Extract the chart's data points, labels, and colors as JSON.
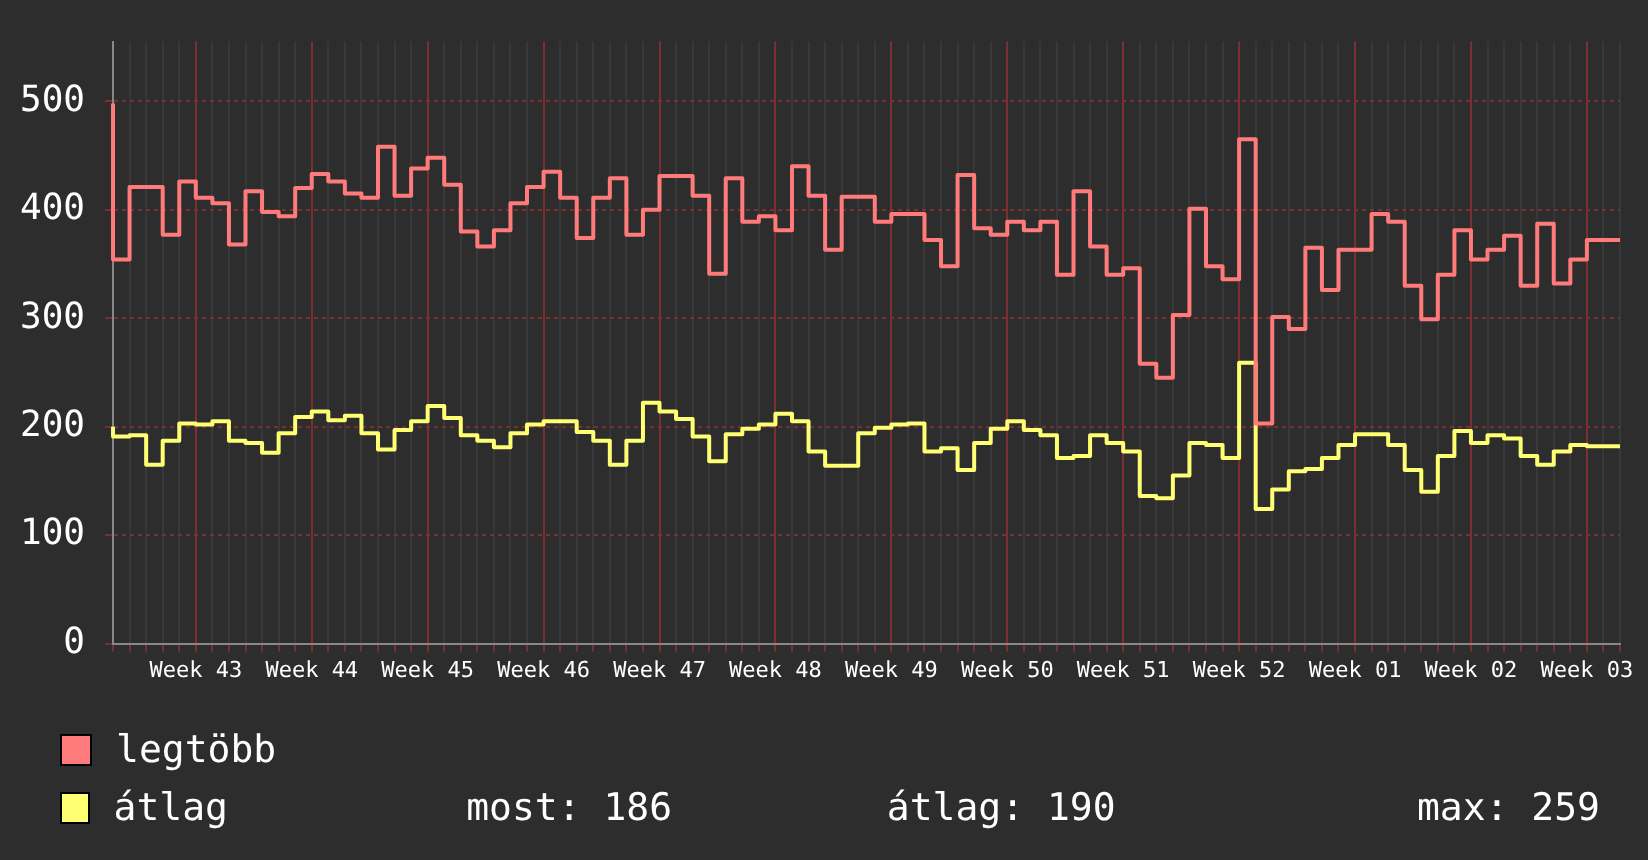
{
  "chart_data": {
    "type": "step",
    "categories": [
      null,
      null,
      null,
      null,
      null,
      "Week 43",
      null,
      null,
      null,
      null,
      null,
      null,
      "Week 44",
      null,
      null,
      null,
      null,
      null,
      null,
      "Week 45",
      null,
      null,
      null,
      null,
      null,
      null,
      "Week 46",
      null,
      null,
      null,
      null,
      null,
      null,
      "Week 47",
      null,
      null,
      null,
      null,
      null,
      null,
      "Week 48",
      null,
      null,
      null,
      null,
      null,
      null,
      "Week 49",
      null,
      null,
      null,
      null,
      null,
      null,
      "Week 50",
      null,
      null,
      null,
      null,
      null,
      null,
      "Week 51",
      null,
      null,
      null,
      null,
      null,
      null,
      "Week 52",
      null,
      null,
      null,
      null,
      null,
      null,
      "Week 01",
      null,
      null,
      null,
      null,
      null,
      null,
      "Week 02",
      null,
      null,
      null,
      null,
      null,
      null,
      "Week 03",
      null,
      null
    ],
    "series": [
      {
        "name": "legtöbb",
        "color": "#ff7b7b",
        "values": [
          498,
          354,
          421,
          421,
          377,
          426,
          411,
          406,
          368,
          417,
          398,
          394,
          420,
          433,
          426,
          415,
          411,
          458,
          413,
          438,
          448,
          423,
          380,
          366,
          381,
          406,
          421,
          435,
          411,
          374,
          411,
          429,
          377,
          400,
          431,
          431,
          413,
          341,
          429,
          389,
          394,
          381,
          440,
          413,
          363,
          412,
          412,
          389,
          396,
          396,
          372,
          348,
          432,
          383,
          377,
          389,
          381,
          389,
          340,
          417,
          366,
          340,
          346,
          258,
          245,
          303,
          401,
          348,
          336,
          465,
          203,
          301,
          290,
          365,
          326,
          363,
          363,
          396,
          389,
          330,
          299,
          340,
          381,
          354,
          363,
          376,
          330,
          387,
          332,
          354,
          372,
          372
        ]
      },
      {
        "name": "átlag",
        "color": "#ffff73",
        "values": [
          200,
          191,
          192,
          165,
          187,
          203,
          202,
          205,
          187,
          185,
          176,
          194,
          209,
          214,
          206,
          210,
          194,
          179,
          197,
          205,
          219,
          208,
          192,
          187,
          181,
          194,
          202,
          205,
          205,
          195,
          187,
          165,
          187,
          222,
          214,
          207,
          191,
          168,
          193,
          198,
          202,
          212,
          205,
          177,
          164,
          164,
          194,
          199,
          202,
          203,
          177,
          180,
          160,
          185,
          198,
          205,
          197,
          192,
          171,
          173,
          192,
          185,
          177,
          136,
          134,
          155,
          185,
          183,
          171,
          259,
          124,
          142,
          159,
          161,
          171,
          183,
          193,
          193,
          183,
          160,
          140,
          173,
          196,
          185,
          192,
          189,
          173,
          165,
          177,
          183,
          182,
          182
        ]
      }
    ],
    "ylim": [
      0,
      555
    ],
    "yticks": [
      0,
      100,
      200,
      300,
      400,
      500
    ],
    "grid": true,
    "legend": "bottom left",
    "annotations": [
      "most: 186",
      "átlag: 190",
      "max: 259"
    ]
  }
}
